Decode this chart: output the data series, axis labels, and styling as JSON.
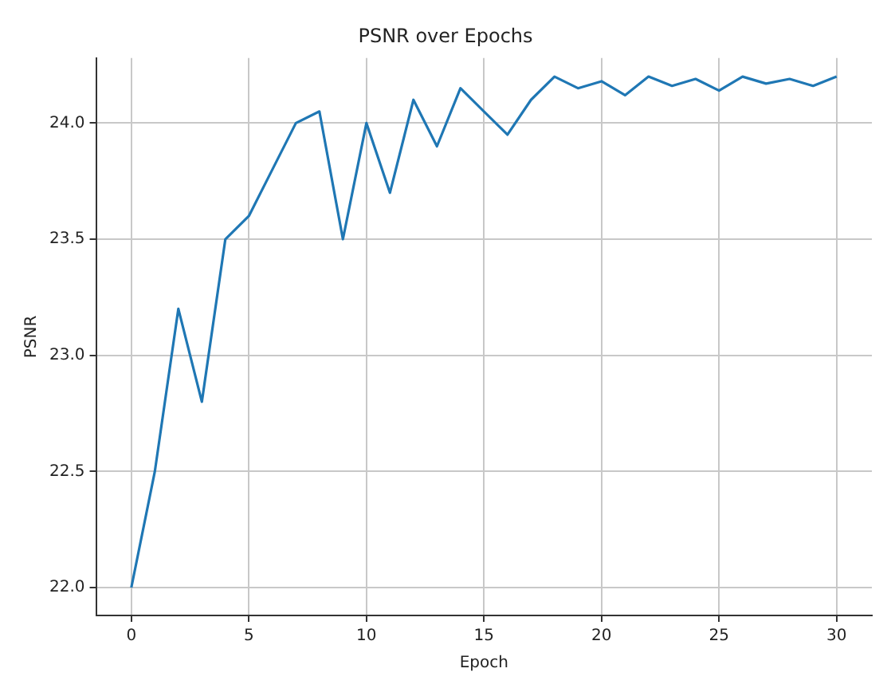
{
  "chart_data": {
    "type": "line",
    "title": "PSNR over Epochs",
    "xlabel": "Epoch",
    "ylabel": "PSNR",
    "x": [
      0,
      1,
      2,
      3,
      4,
      5,
      6,
      7,
      8,
      9,
      10,
      11,
      12,
      13,
      14,
      15,
      16,
      17,
      18,
      19,
      20,
      21,
      22,
      23,
      24,
      25,
      26,
      27,
      28,
      29,
      30
    ],
    "series": [
      {
        "color": "#1f77b4",
        "values": [
          22.0,
          22.5,
          23.2,
          22.8,
          23.5,
          23.6,
          23.8,
          24.0,
          24.05,
          23.5,
          24.0,
          23.7,
          24.1,
          23.9,
          24.15,
          24.05,
          23.95,
          24.1,
          24.2,
          24.15,
          24.18,
          24.12,
          24.2,
          24.16,
          24.19,
          24.14,
          24.2,
          24.17,
          24.19,
          24.16,
          24.2
        ]
      }
    ],
    "xlim": [
      -1.5,
      31.5
    ],
    "xticks": [
      0,
      5,
      10,
      15,
      20,
      25,
      30
    ],
    "ylim": [
      21.88,
      24.28
    ],
    "yticks": [
      {
        "value": 22,
        "label": "22.0"
      },
      {
        "value": 22.5,
        "label": "22.5"
      },
      {
        "value": 23,
        "label": "23.0"
      },
      {
        "value": 23.5,
        "label": "23.5"
      },
      {
        "value": 24,
        "label": "24.0"
      }
    ],
    "grid": true,
    "legend": false,
    "marker": "none",
    "line_style": "solid"
  }
}
